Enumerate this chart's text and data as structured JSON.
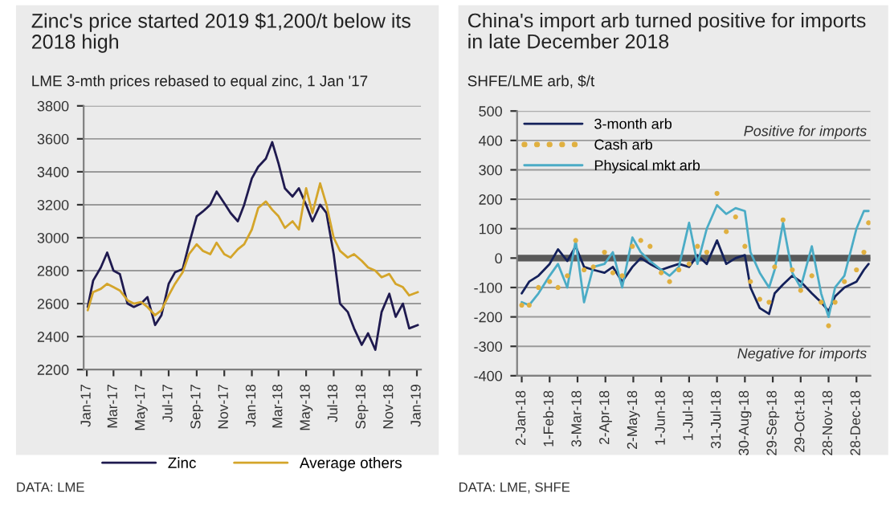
{
  "chart_data": [
    {
      "type": "line",
      "title": "Zinc's price started 2019 $1,200/t below its 2018 high",
      "subtitle": "LME 3-mth prices rebased to equal zinc, 1 Jan '17",
      "x": [
        "2017-01-03",
        "2017-01-15",
        "2017-02-01",
        "2017-02-15",
        "2017-03-01",
        "2017-03-15",
        "2017-04-01",
        "2017-04-15",
        "2017-05-01",
        "2017-05-15",
        "2017-06-01",
        "2017-06-15",
        "2017-07-01",
        "2017-07-15",
        "2017-08-01",
        "2017-08-15",
        "2017-09-01",
        "2017-09-15",
        "2017-10-01",
        "2017-10-15",
        "2017-11-01",
        "2017-11-15",
        "2017-12-01",
        "2017-12-15",
        "2018-01-01",
        "2018-01-15",
        "2018-02-01",
        "2018-02-15",
        "2018-03-01",
        "2018-03-15",
        "2018-04-01",
        "2018-04-15",
        "2018-05-01",
        "2018-05-15",
        "2018-06-01",
        "2018-06-15",
        "2018-07-01",
        "2018-07-15",
        "2018-08-01",
        "2018-08-15",
        "2018-09-01",
        "2018-09-15",
        "2018-10-01",
        "2018-10-15",
        "2018-11-01",
        "2018-11-15",
        "2018-12-01",
        "2018-12-15",
        "2019-01-03"
      ],
      "series": [
        {
          "name": "Zinc",
          "color": "#1f1a4f",
          "values": [
            2580,
            2740,
            2820,
            2910,
            2800,
            2780,
            2600,
            2580,
            2600,
            2640,
            2470,
            2530,
            2720,
            2790,
            2810,
            2960,
            3130,
            3160,
            3200,
            3280,
            3210,
            3150,
            3100,
            3200,
            3360,
            3430,
            3480,
            3580,
            3450,
            3300,
            3250,
            3300,
            3200,
            3100,
            3200,
            3150,
            2900,
            2600,
            2550,
            2450,
            2350,
            2420,
            2320,
            2550,
            2660,
            2520,
            2600,
            2450,
            2470
          ]
        },
        {
          "name": "Average others",
          "color": "#d4a52a",
          "values": [
            2560,
            2670,
            2690,
            2720,
            2700,
            2680,
            2620,
            2600,
            2610,
            2580,
            2530,
            2560,
            2650,
            2720,
            2790,
            2900,
            2960,
            2920,
            2900,
            2970,
            2900,
            2880,
            2930,
            2960,
            3050,
            3180,
            3220,
            3170,
            3130,
            3060,
            3100,
            3050,
            3300,
            3150,
            3330,
            3200,
            3000,
            2920,
            2880,
            2900,
            2860,
            2820,
            2800,
            2760,
            2780,
            2720,
            2700,
            2650,
            2670
          ]
        }
      ],
      "xlim": [
        "2016-12-25",
        "2019-01-10"
      ],
      "xticks": [
        {
          "value": "2017-01-01",
          "label": "Jan-17"
        },
        {
          "value": "2017-03-01",
          "label": "Mar-17"
        },
        {
          "value": "2017-05-01",
          "label": "May-17"
        },
        {
          "value": "2017-07-01",
          "label": "Jul-17"
        },
        {
          "value": "2017-09-01",
          "label": "Sep-17"
        },
        {
          "value": "2017-11-01",
          "label": "Nov-17"
        },
        {
          "value": "2018-01-01",
          "label": "Jan-18"
        },
        {
          "value": "2018-03-01",
          "label": "Mar-18"
        },
        {
          "value": "2018-05-01",
          "label": "May-18"
        },
        {
          "value": "2018-07-01",
          "label": "Jul-18"
        },
        {
          "value": "2018-09-01",
          "label": "Sep-18"
        },
        {
          "value": "2018-11-01",
          "label": "Nov-18"
        },
        {
          "value": "2019-01-01",
          "label": "Jan-19"
        }
      ],
      "ylim": [
        2200,
        3800
      ],
      "yticks": [
        2200,
        2400,
        2600,
        2800,
        3000,
        3200,
        3400,
        3600,
        3800
      ],
      "grid": "y",
      "legend": "bottom",
      "line_style": "solid",
      "marker": "none",
      "annotations": [
        "DATA: LME"
      ]
    },
    {
      "type": "line",
      "title": "China's import arb turned positive for imports in late December 2018",
      "subtitle": "SHFE/LME arb, $/t",
      "x": [
        "2018-01-02",
        "2018-01-10",
        "2018-01-20",
        "2018-02-01",
        "2018-02-10",
        "2018-02-20",
        "2018-03-01",
        "2018-03-10",
        "2018-03-20",
        "2018-04-01",
        "2018-04-10",
        "2018-04-20",
        "2018-05-01",
        "2018-05-10",
        "2018-05-20",
        "2018-06-01",
        "2018-06-10",
        "2018-06-20",
        "2018-07-01",
        "2018-07-10",
        "2018-07-20",
        "2018-07-31",
        "2018-08-10",
        "2018-08-20",
        "2018-08-30",
        "2018-09-05",
        "2018-09-15",
        "2018-09-25",
        "2018-10-01",
        "2018-10-10",
        "2018-10-20",
        "2018-10-29",
        "2018-11-10",
        "2018-11-20",
        "2018-11-28",
        "2018-12-05",
        "2018-12-15",
        "2018-12-28",
        "2019-01-05",
        "2019-01-10"
      ],
      "series": [
        {
          "name": "3-month arb",
          "color": "#14215b",
          "type": "line",
          "values": [
            -120,
            -80,
            -60,
            -20,
            30,
            -10,
            40,
            -30,
            -40,
            -50,
            -30,
            -80,
            -30,
            0,
            -20,
            -40,
            -30,
            -20,
            -30,
            10,
            -20,
            60,
            -20,
            0,
            10,
            -100,
            -170,
            -190,
            -120,
            -90,
            -60,
            -80,
            -120,
            -150,
            -180,
            -130,
            -100,
            -80,
            -40,
            -20
          ]
        },
        {
          "name": "Cash arb",
          "color": "#e0b040",
          "type": "scatter",
          "marker": "circle",
          "values": [
            -160,
            -160,
            -100,
            -80,
            -100,
            -60,
            60,
            -40,
            -30,
            20,
            -50,
            -60,
            40,
            60,
            40,
            -50,
            -80,
            -40,
            -20,
            40,
            20,
            220,
            90,
            140,
            40,
            -80,
            -140,
            -150,
            -30,
            130,
            -40,
            -110,
            -60,
            -150,
            -230,
            -150,
            -80,
            -40,
            20,
            120
          ]
        },
        {
          "name": "Physical mkt arb",
          "color": "#4bacc6",
          "type": "line",
          "values": [
            -150,
            -160,
            -120,
            -60,
            -20,
            -100,
            60,
            -150,
            -30,
            -20,
            20,
            -100,
            70,
            20,
            -10,
            -40,
            -60,
            -30,
            120,
            -20,
            100,
            180,
            150,
            170,
            160,
            20,
            -50,
            -100,
            -40,
            120,
            -50,
            -100,
            40,
            -120,
            -200,
            -100,
            -60,
            100,
            160,
            160
          ]
        }
      ],
      "xlim": [
        "2017-12-28",
        "2019-01-12"
      ],
      "xticks": [
        {
          "value": "2018-01-02",
          "label": "2-Jan-18"
        },
        {
          "value": "2018-02-01",
          "label": "1-Feb-18"
        },
        {
          "value": "2018-03-03",
          "label": "3-Mar-18"
        },
        {
          "value": "2018-04-02",
          "label": "2-Apr-18"
        },
        {
          "value": "2018-05-02",
          "label": "2-May-18"
        },
        {
          "value": "2018-06-01",
          "label": "1-Jun-18"
        },
        {
          "value": "2018-07-01",
          "label": "1-Jul-18"
        },
        {
          "value": "2018-07-31",
          "label": "31-Jul-18"
        },
        {
          "value": "2018-08-30",
          "label": "30-Aug-18"
        },
        {
          "value": "2018-09-29",
          "label": "29-Sep-18"
        },
        {
          "value": "2018-10-29",
          "label": "29-Oct-18"
        },
        {
          "value": "2018-11-28",
          "label": "28-Nov-18"
        },
        {
          "value": "2018-12-28",
          "label": "28-Dec-18"
        }
      ],
      "ylim": [
        -400,
        500
      ],
      "yticks": [
        -400,
        -300,
        -200,
        -100,
        0,
        100,
        200,
        300,
        400,
        500
      ],
      "ref_lines": [
        {
          "axis": "y",
          "value": 0,
          "color": "#595959"
        }
      ],
      "grid": "y",
      "legend": "top left",
      "line_style": "solid",
      "annotations": [
        "Positive for imports",
        "Negative for imports",
        "DATA: LME, SHFE"
      ]
    }
  ]
}
